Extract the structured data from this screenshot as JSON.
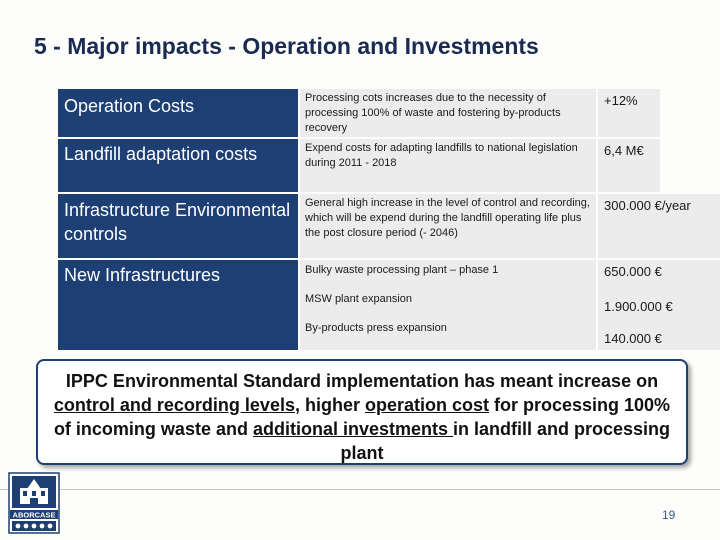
{
  "page": {
    "title": "5 - Major impacts - Operation and Investments",
    "page_number": "19"
  },
  "table": {
    "rows": [
      {
        "label": "Operation Costs",
        "description": "Processing cots increases  due to the necessity of processing 100% of waste and fostering by-products recovery",
        "value": "+12%"
      },
      {
        "label": "Landfill adaptation costs",
        "description": "Expend costs  for adapting landfills  to national legislation  during 2011 - 2018",
        "value": "6,4 M€"
      },
      {
        "label": "Infrastructure Environmental controls",
        "description": "General high increase in the level of control and recording, which will be expend during the landfill operating life plus the post closure period (- 2046)",
        "value": "300.000 €/year"
      },
      {
        "label": "New Infrastructures",
        "items": [
          {
            "description": "Bulky waste processing plant – phase 1",
            "value": "650.000 €"
          },
          {
            "description": "MSW plant expansion",
            "value": "1.900.000 €"
          },
          {
            "description": "By-products press expansion",
            "value": "140.000 €"
          }
        ]
      }
    ]
  },
  "callout": {
    "part1": "IPPC Environmental Standard implementation has meant  increase on ",
    "u1": "control and recording levels",
    "part2": ", higher ",
    "u2": "operation cost",
    "part3": " for processing 100% of incoming waste and ",
    "u3": "additional investments ",
    "part4": "in landfill and processing plant"
  },
  "logo": {
    "text": "ABORCASE"
  },
  "colors": {
    "header_blue": "#1e3f73",
    "cell_grey": "#ececec",
    "title": "#1a2b52"
  }
}
